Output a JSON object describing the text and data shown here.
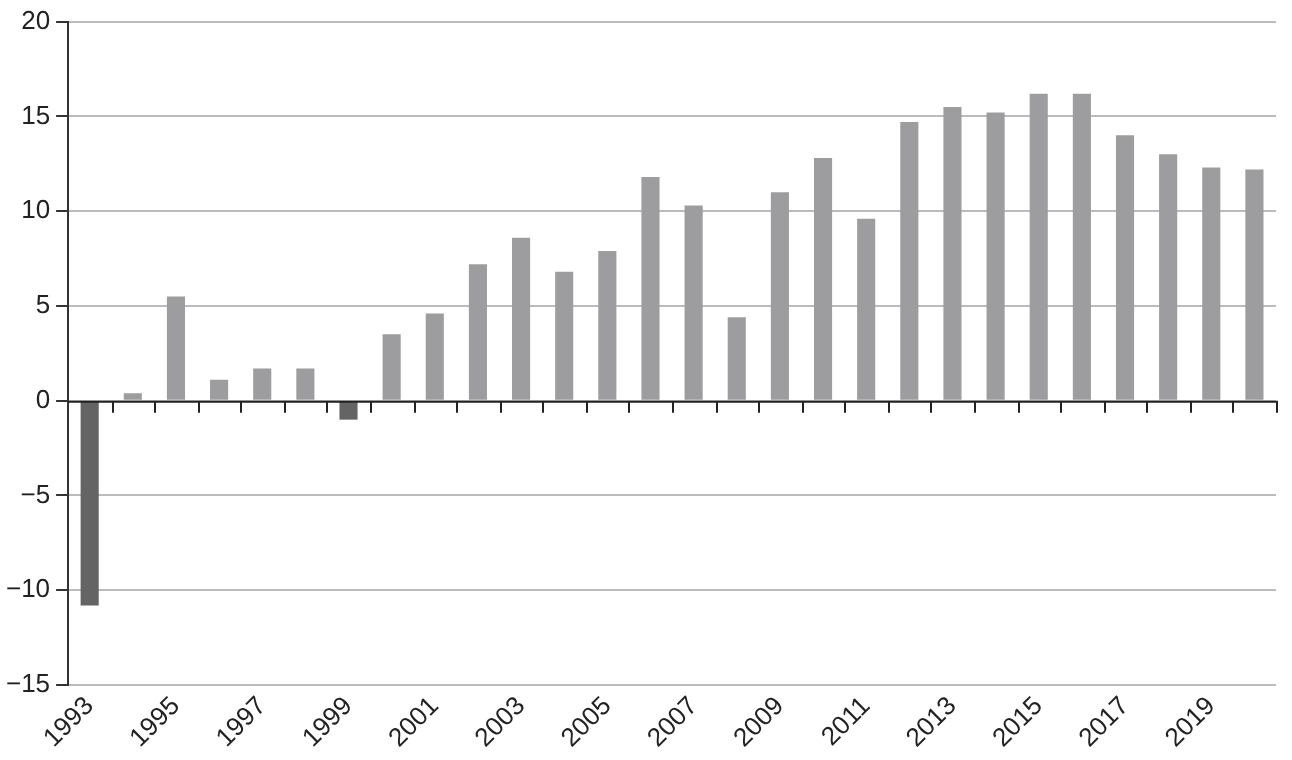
{
  "chart_data": {
    "type": "bar",
    "categories": [
      "1993",
      null,
      "1995",
      null,
      "1997",
      null,
      "1999",
      null,
      "2001",
      null,
      "2003",
      null,
      "2005",
      null,
      "2007",
      null,
      "2009",
      null,
      "2011",
      null,
      "2013",
      null,
      "2015",
      null,
      "2017",
      null,
      "2019",
      null
    ],
    "values": [
      -10.8,
      0.4,
      5.5,
      1.1,
      1.7,
      1.7,
      -1.0,
      3.5,
      4.6,
      7.2,
      8.6,
      6.8,
      7.9,
      11.8,
      10.3,
      4.4,
      11.0,
      12.8,
      9.6,
      14.7,
      15.5,
      15.2,
      16.2,
      16.2,
      14.0,
      13.0,
      12.3,
      12.2
    ],
    "colors": [
      "#646464",
      "#9d9d9f",
      "#9d9d9f",
      "#9d9d9f",
      "#9d9d9f",
      "#9d9d9f",
      "#646464",
      "#9d9d9f",
      "#9d9d9f",
      "#9d9d9f",
      "#9d9d9f",
      "#9d9d9f",
      "#9d9d9f",
      "#9d9d9f",
      "#9d9d9f",
      "#9d9d9f",
      "#9d9d9f",
      "#9d9d9f",
      "#9d9d9f",
      "#9d9d9f",
      "#9d9d9f",
      "#9d9d9f",
      "#9d9d9f",
      "#9d9d9f",
      "#9d9d9f",
      "#9d9d9f",
      "#9d9d9f",
      "#9d9d9f"
    ],
    "ylim": [
      -15,
      20
    ],
    "yticks": [
      -15,
      -10,
      -5,
      0,
      5,
      10,
      15,
      20
    ],
    "grid": "y"
  }
}
